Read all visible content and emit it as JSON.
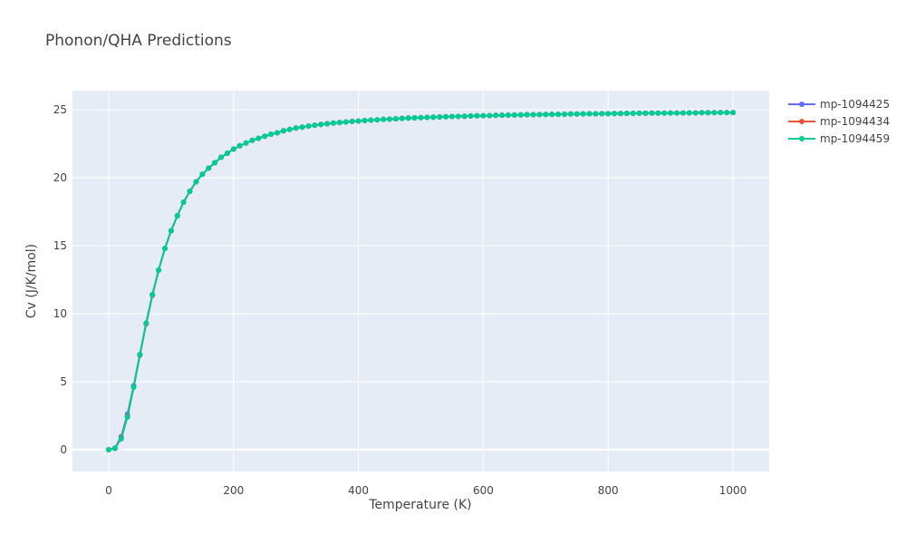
{
  "chart_data": {
    "type": "line",
    "title": "Phonon/QHA Predictions",
    "xlabel": "Temperature (K)",
    "ylabel": "Cv (J/K/mol)",
    "xlim": [
      -58,
      1058
    ],
    "ylim": [
      -1.6,
      26.4
    ],
    "xticks": [
      0,
      200,
      400,
      600,
      800,
      1000
    ],
    "yticks": [
      0,
      5,
      10,
      15,
      20,
      25
    ],
    "grid": true,
    "legend_position": "top-right",
    "background": "#E5ECF6",
    "x": [
      0,
      10,
      20,
      30,
      40,
      50,
      60,
      70,
      80,
      90,
      100,
      110,
      120,
      130,
      140,
      150,
      160,
      170,
      180,
      190,
      200,
      210,
      220,
      230,
      240,
      250,
      260,
      270,
      280,
      290,
      300,
      310,
      320,
      330,
      340,
      350,
      360,
      370,
      380,
      390,
      400,
      410,
      420,
      430,
      440,
      450,
      460,
      470,
      480,
      490,
      500,
      510,
      520,
      530,
      540,
      550,
      560,
      570,
      580,
      590,
      600,
      610,
      620,
      630,
      640,
      650,
      660,
      670,
      680,
      690,
      700,
      710,
      720,
      730,
      740,
      750,
      760,
      770,
      780,
      790,
      800,
      810,
      820,
      830,
      840,
      850,
      860,
      870,
      880,
      890,
      900,
      910,
      920,
      930,
      940,
      950,
      960,
      970,
      980,
      990,
      1000
    ],
    "series": [
      {
        "name": "mp-1094425",
        "color": "#636EFA",
        "values": [
          0,
          0.12,
          0.95,
          2.6,
          4.7,
          7.0,
          9.3,
          11.4,
          13.2,
          14.8,
          16.1,
          17.2,
          18.2,
          19.0,
          19.7,
          20.25,
          20.7,
          21.1,
          21.5,
          21.8,
          22.1,
          22.35,
          22.55,
          22.75,
          22.9,
          23.05,
          23.2,
          23.3,
          23.45,
          23.55,
          23.65,
          23.72,
          23.8,
          23.86,
          23.92,
          23.97,
          24.02,
          24.06,
          24.1,
          24.14,
          24.17,
          24.2,
          24.23,
          24.26,
          24.29,
          24.31,
          24.33,
          24.36,
          24.38,
          24.4,
          24.42,
          24.43,
          24.45,
          24.47,
          24.48,
          24.5,
          24.51,
          24.52,
          24.54,
          24.55,
          24.56,
          24.57,
          24.58,
          24.59,
          24.6,
          24.61,
          24.62,
          24.63,
          24.63,
          24.64,
          24.65,
          24.66,
          24.66,
          24.67,
          24.68,
          24.68,
          24.69,
          24.7,
          24.7,
          24.71,
          24.71,
          24.72,
          24.72,
          24.73,
          24.73,
          24.74,
          24.74,
          24.75,
          24.75,
          24.75,
          24.76,
          24.76,
          24.77,
          24.77,
          24.77,
          24.78,
          24.78,
          24.78,
          24.79,
          24.79,
          24.79
        ]
      },
      {
        "name": "mp-1094434",
        "color": "#EF553B",
        "values": [
          0,
          0.1,
          0.85,
          2.45,
          4.6,
          6.95,
          9.25,
          11.35,
          13.2,
          14.8,
          16.1,
          17.2,
          18.2,
          19.0,
          19.7,
          20.25,
          20.7,
          21.1,
          21.5,
          21.8,
          22.1,
          22.35,
          22.55,
          22.75,
          22.9,
          23.05,
          23.2,
          23.3,
          23.45,
          23.55,
          23.65,
          23.72,
          23.8,
          23.86,
          23.92,
          23.97,
          24.02,
          24.06,
          24.1,
          24.14,
          24.17,
          24.2,
          24.23,
          24.26,
          24.29,
          24.31,
          24.33,
          24.36,
          24.38,
          24.4,
          24.42,
          24.43,
          24.45,
          24.47,
          24.48,
          24.5,
          24.51,
          24.52,
          24.54,
          24.55,
          24.56,
          24.57,
          24.58,
          24.59,
          24.6,
          24.61,
          24.62,
          24.63,
          24.63,
          24.64,
          24.65,
          24.66,
          24.66,
          24.67,
          24.68,
          24.68,
          24.69,
          24.7,
          24.7,
          24.71,
          24.71,
          24.72,
          24.72,
          24.73,
          24.73,
          24.74,
          24.74,
          24.75,
          24.75,
          24.75,
          24.76,
          24.76,
          24.77,
          24.77,
          24.77,
          24.78,
          24.78,
          24.78,
          24.79,
          24.79,
          24.79
        ]
      },
      {
        "name": "mp-1094459",
        "color": "#00CC96",
        "values": [
          0,
          0.1,
          0.8,
          2.4,
          4.6,
          7.0,
          9.3,
          11.4,
          13.2,
          14.8,
          16.1,
          17.2,
          18.2,
          19.0,
          19.7,
          20.25,
          20.7,
          21.1,
          21.5,
          21.8,
          22.1,
          22.35,
          22.55,
          22.75,
          22.9,
          23.05,
          23.2,
          23.3,
          23.45,
          23.55,
          23.65,
          23.72,
          23.8,
          23.86,
          23.92,
          23.97,
          24.02,
          24.06,
          24.1,
          24.14,
          24.17,
          24.2,
          24.23,
          24.26,
          24.29,
          24.31,
          24.33,
          24.36,
          24.38,
          24.4,
          24.42,
          24.43,
          24.45,
          24.47,
          24.48,
          24.5,
          24.51,
          24.52,
          24.54,
          24.55,
          24.56,
          24.57,
          24.58,
          24.59,
          24.6,
          24.61,
          24.62,
          24.63,
          24.63,
          24.64,
          24.65,
          24.66,
          24.66,
          24.67,
          24.68,
          24.68,
          24.69,
          24.7,
          24.7,
          24.71,
          24.71,
          24.72,
          24.72,
          24.73,
          24.73,
          24.74,
          24.74,
          24.75,
          24.75,
          24.75,
          24.76,
          24.76,
          24.77,
          24.77,
          24.77,
          24.78,
          24.78,
          24.78,
          24.79,
          24.79,
          24.79
        ]
      }
    ]
  }
}
